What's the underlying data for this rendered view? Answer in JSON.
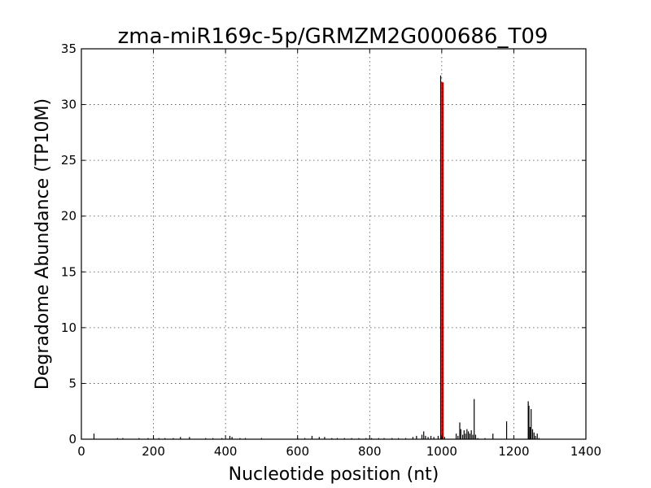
{
  "chart_data": {
    "type": "bar",
    "title": "zma-miR169c-5p/GRMZM2G000686_T09",
    "xlabel": "Nucleotide position (nt)",
    "ylabel": "Degradome Abundance (TP10M)",
    "xlim": [
      0,
      1400
    ],
    "ylim": [
      0,
      35
    ],
    "xticks": [
      0,
      200,
      400,
      600,
      800,
      1000,
      1200,
      1400
    ],
    "yticks": [
      0,
      5,
      10,
      15,
      20,
      25,
      30,
      35
    ],
    "grid": true,
    "bar_color": "#000000",
    "highlight_color": "#d40000",
    "series": [
      {
        "values": [
          [
            35,
            0.5
          ],
          [
            100,
            0.1
          ],
          [
            115,
            0.1
          ],
          [
            160,
            0.1
          ],
          [
            185,
            0.1
          ],
          [
            200,
            0.1
          ],
          [
            215,
            0.1
          ],
          [
            232,
            0.1
          ],
          [
            255,
            0.1
          ],
          [
            275,
            0.2
          ],
          [
            300,
            0.2
          ],
          [
            345,
            0.1
          ],
          [
            365,
            0.1
          ],
          [
            390,
            0.1
          ],
          [
            412,
            0.3
          ],
          [
            418,
            0.2
          ],
          [
            440,
            0.1
          ],
          [
            455,
            0.1
          ],
          [
            500,
            0.1
          ],
          [
            600,
            0.1
          ],
          [
            620,
            0.1
          ],
          [
            640,
            0.3
          ],
          [
            660,
            0.2
          ],
          [
            675,
            0.2
          ],
          [
            695,
            0.1
          ],
          [
            710,
            0.1
          ],
          [
            730,
            0.1
          ],
          [
            750,
            0.1
          ],
          [
            770,
            0.1
          ],
          [
            790,
            0.1
          ],
          [
            805,
            0.1
          ],
          [
            825,
            0.1
          ],
          [
            840,
            0.1
          ],
          [
            862,
            0.1
          ],
          [
            880,
            0.1
          ],
          [
            900,
            0.1
          ],
          [
            920,
            0.2
          ],
          [
            930,
            0.3
          ],
          [
            945,
            0.4
          ],
          [
            950,
            0.7
          ],
          [
            955,
            0.3
          ],
          [
            962,
            0.2
          ],
          [
            970,
            0.3
          ],
          [
            978,
            0.2
          ],
          [
            990,
            0.3
          ],
          [
            997,
            32.6
          ],
          [
            1000,
            0.2
          ],
          [
            1008,
            0.2
          ],
          [
            1040,
            0.5
          ],
          [
            1045,
            0.3
          ],
          [
            1050,
            1.5
          ],
          [
            1053,
            0.9
          ],
          [
            1058,
            0.4
          ],
          [
            1062,
            0.8
          ],
          [
            1066,
            0.5
          ],
          [
            1070,
            0.9
          ],
          [
            1074,
            0.7
          ],
          [
            1078,
            0.5
          ],
          [
            1082,
            0.8
          ],
          [
            1086,
            0.4
          ],
          [
            1090,
            3.6
          ],
          [
            1094,
            0.4
          ],
          [
            1100,
            0.1
          ],
          [
            1120,
            0.1
          ],
          [
            1142,
            0.5
          ],
          [
            1180,
            1.6
          ],
          [
            1240,
            3.4
          ],
          [
            1242,
            3.0
          ],
          [
            1245,
            1.1
          ],
          [
            1248,
            2.7
          ],
          [
            1252,
            0.9
          ],
          [
            1256,
            0.6
          ],
          [
            1260,
            0.3
          ],
          [
            1265,
            0.5
          ],
          [
            1270,
            0.1
          ]
        ]
      },
      {
        "values": [
          [
            1002,
            32.0
          ]
        ]
      }
    ]
  }
}
